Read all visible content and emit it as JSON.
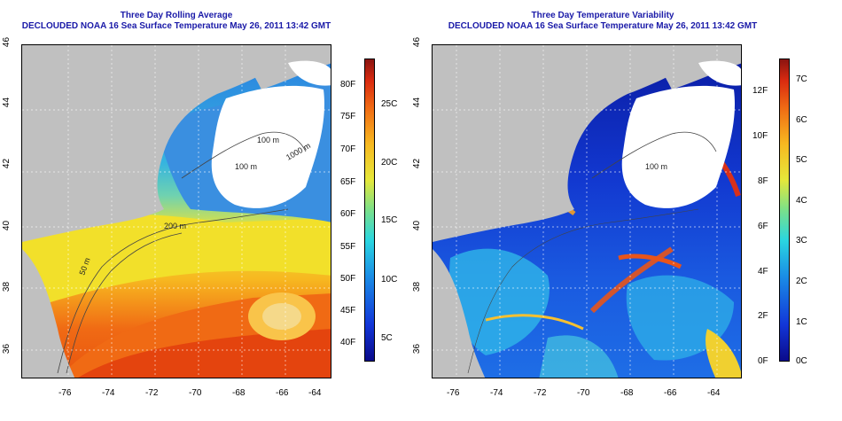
{
  "maps": [
    {
      "title_line1": "Three Day Rolling Average",
      "title_line2": "DECLOUDED NOAA 16 Sea Surface Temperature May 26, 2011 13:42 GMT",
      "x_ticks": [
        "-76",
        "-74",
        "-72",
        "-70",
        "-68",
        "-66",
        "-64"
      ],
      "y_ticks": [
        "36",
        "38",
        "40",
        "42",
        "44",
        "46"
      ],
      "contour_labels": [
        "50 m",
        "200 m",
        "100 m",
        "100 m",
        "1000 m"
      ],
      "colorbar_f": [
        "40F",
        "45F",
        "50F",
        "55F",
        "60F",
        "65F",
        "70F",
        "75F",
        "80F"
      ],
      "colorbar_c": [
        "5C",
        "10C",
        "15C",
        "20C",
        "25C"
      ]
    },
    {
      "title_line1": "Three Day Temperature Variability",
      "title_line2": "DECLOUDED NOAA 16 Sea Surface Temperature May 26, 2011 13:42 GMT",
      "x_ticks": [
        "-76",
        "-74",
        "-72",
        "-70",
        "-68",
        "-66",
        "-64"
      ],
      "y_ticks": [
        "36",
        "38",
        "40",
        "42",
        "44",
        "46"
      ],
      "contour_labels": [
        "100 m"
      ],
      "colorbar_f": [
        "0F",
        "2F",
        "4F",
        "6F",
        "8F",
        "10F",
        "12F"
      ],
      "colorbar_c": [
        "0C",
        "1C",
        "2C",
        "3C",
        "4C",
        "5C",
        "6C",
        "7C"
      ]
    }
  ],
  "colors": {
    "land": "#c0c0c0",
    "cloud": "#ffffff",
    "title": "#1a1aa8",
    "grid": "#ffffff"
  }
}
